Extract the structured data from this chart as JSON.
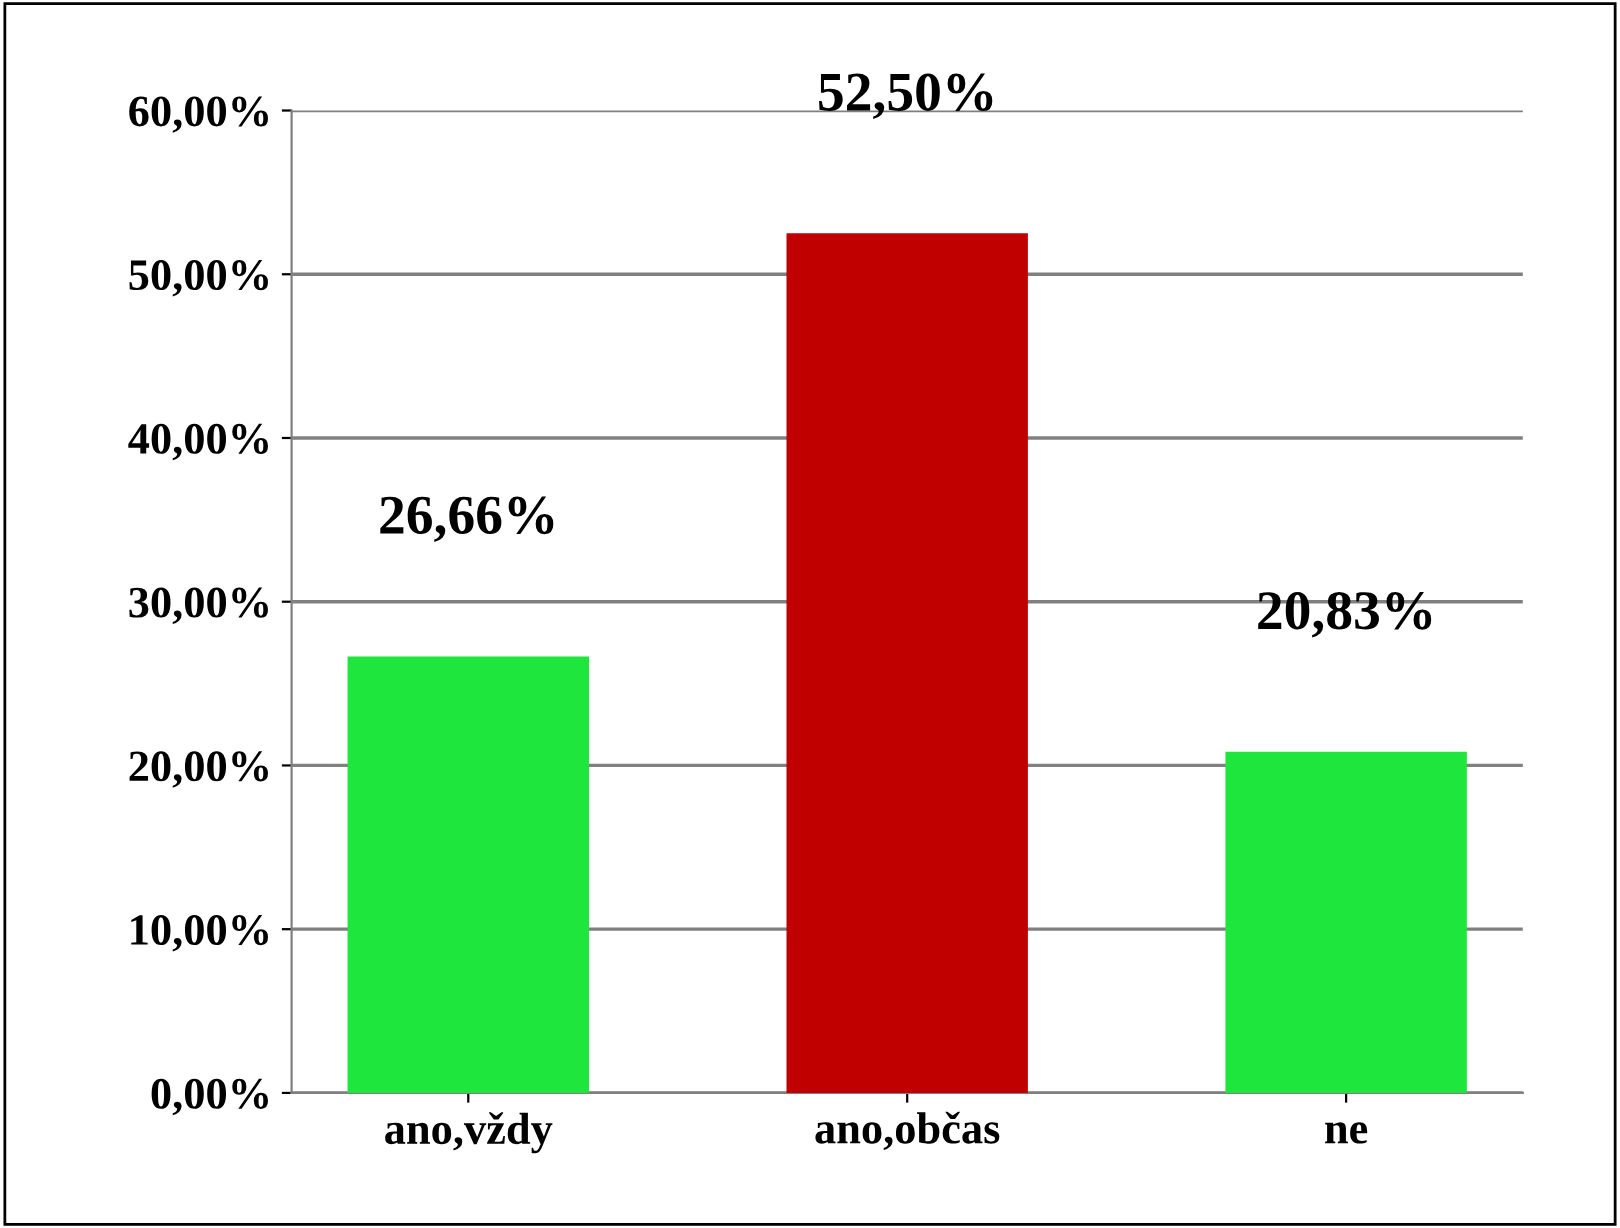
{
  "chart_data": {
    "type": "bar",
    "categories": [
      "ano,vždy",
      "ano,občas",
      "ne"
    ],
    "values": [
      26.66,
      52.5,
      20.83
    ],
    "colors": [
      "#1ee63c",
      "#c00000",
      "#1ee63c"
    ],
    "value_labels": [
      "26,66%",
      "52,50%",
      "20,83%"
    ],
    "ylim": [
      0,
      60
    ],
    "yticks": [
      {
        "value": 0,
        "label": "0,00%"
      },
      {
        "value": 10,
        "label": "10,00%"
      },
      {
        "value": 20,
        "label": "20,00%"
      },
      {
        "value": 30,
        "label": "30,00%"
      },
      {
        "value": 40,
        "label": "40,00%"
      },
      {
        "value": 50,
        "label": "50,00%"
      },
      {
        "value": 60,
        "label": "60,00%"
      }
    ],
    "grid": "y",
    "legend": false
  }
}
